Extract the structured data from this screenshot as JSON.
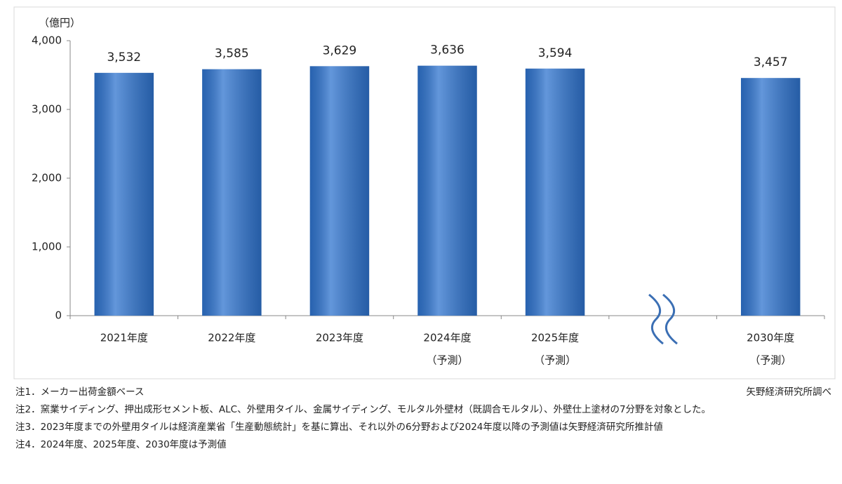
{
  "chart_data": {
    "type": "bar",
    "y_label": "（億円）",
    "categories": [
      "2021年度",
      "2022年度",
      "2023年度",
      "2024年度",
      "2025年度",
      null,
      "2030年度"
    ],
    "category_notes": [
      null,
      null,
      null,
      "（予測）",
      "（予測）",
      null,
      "（予測）"
    ],
    "values": [
      3532,
      3585,
      3629,
      3636,
      3594,
      null,
      3457
    ],
    "value_labels": [
      "3,532",
      "3,585",
      "3,629",
      "3,636",
      "3,594",
      null,
      "3,457"
    ],
    "color": "#2f74cf",
    "ylim": [
      0,
      4000
    ],
    "yticks": [
      0,
      {
        "value": 1000,
        "label": "1,000"
      },
      {
        "value": 2000,
        "label": "2,000"
      },
      {
        "value": 3000,
        "label": "3,000"
      },
      {
        "value": 4000,
        "label": "4,000"
      }
    ],
    "grid": false,
    "source": "矢野経済研究所調べ",
    "notes": [
      "注1．メーカー出荷金額ベース",
      "注2．窯業サイディング、押出成形セメント板、ALC、外壁用タイル、金属サイディング、モルタル外壁材（既調合モルタル）、外壁仕上塗材の7分野を対象とした。",
      "注3．2023年度までの外壁用タイルは経済産業省「生産動態統計」を基に算出、それ以外の6分野および2024年度以降の予測値は矢野経済研究所推計値",
      "注4．2024年度、2025年度、2030年度は予測値"
    ]
  }
}
